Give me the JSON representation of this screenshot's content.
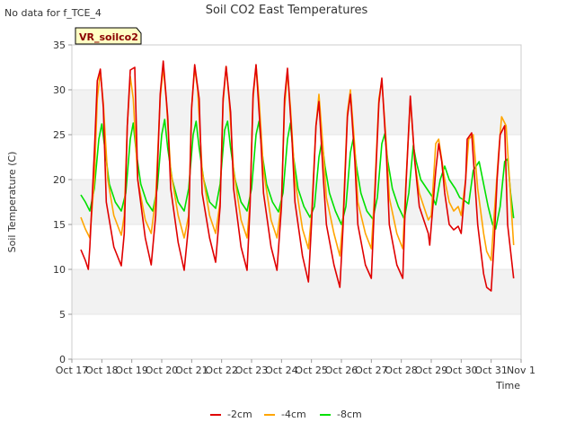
{
  "chart_data": {
    "type": "line",
    "title": "Soil CO2 East Temperatures",
    "no_data_note": "No data for f_TCE_4",
    "site_label": "VR_soilco2",
    "xlabel": "Time",
    "ylabel": "Soil Temperature (C)",
    "ylim": [
      0,
      35
    ],
    "xlim": [
      0,
      15
    ],
    "yticks": [
      0,
      5,
      10,
      15,
      20,
      25,
      30,
      35
    ],
    "xticks": [
      {
        "pos": 0,
        "label": "Oct 17"
      },
      {
        "pos": 1,
        "label": "Oct 18"
      },
      {
        "pos": 2,
        "label": "Oct 19"
      },
      {
        "pos": 3,
        "label": "Oct 20"
      },
      {
        "pos": 4,
        "label": "Oct 21"
      },
      {
        "pos": 5,
        "label": "Oct 22"
      },
      {
        "pos": 6,
        "label": "Oct 23"
      },
      {
        "pos": 7,
        "label": "Oct 24"
      },
      {
        "pos": 8,
        "label": "Oct 25"
      },
      {
        "pos": 9,
        "label": "Oct 26"
      },
      {
        "pos": 10,
        "label": "Oct 27"
      },
      {
        "pos": 11,
        "label": "Oct 28"
      },
      {
        "pos": 12,
        "label": "Oct 29"
      },
      {
        "pos": 13,
        "label": "Oct 30"
      },
      {
        "pos": 14,
        "label": "Oct 31"
      },
      {
        "pos": 15,
        "label": "Nov 1"
      }
    ],
    "grid_bands": true,
    "legend_position": "bottom-center",
    "series": [
      {
        "name": "-2cm",
        "color": "#e00000",
        "x": [
          0.3,
          0.45,
          0.55,
          0.6,
          0.75,
          0.85,
          0.95,
          1.05,
          1.15,
          1.4,
          1.65,
          1.75,
          1.85,
          1.95,
          2.1,
          2.2,
          2.45,
          2.65,
          2.8,
          2.95,
          3.05,
          3.2,
          3.3,
          3.55,
          3.75,
          3.9,
          4.0,
          4.1,
          4.25,
          4.35,
          4.6,
          4.8,
          4.95,
          5.05,
          5.15,
          5.3,
          5.4,
          5.65,
          5.85,
          5.95,
          6.05,
          6.15,
          6.3,
          6.4,
          6.65,
          6.85,
          7.0,
          7.1,
          7.2,
          7.35,
          7.45,
          7.7,
          7.9,
          8.0,
          8.15,
          8.25,
          8.4,
          8.5,
          8.75,
          8.95,
          9.05,
          9.2,
          9.3,
          9.45,
          9.55,
          9.8,
          10.0,
          10.1,
          10.25,
          10.35,
          10.5,
          10.6,
          10.85,
          11.05,
          11.15,
          11.3,
          11.45,
          11.6,
          11.7,
          11.9,
          11.95,
          12.15,
          12.25,
          12.35,
          12.45,
          12.6,
          12.75,
          12.9,
          13.0,
          13.15,
          13.2,
          13.35,
          13.55,
          13.75,
          13.85,
          14.0,
          14.1,
          14.2,
          14.3,
          14.45,
          14.55,
          14.75
        ],
        "values": [
          12.2,
          11.0,
          10.0,
          12.5,
          23.0,
          31.0,
          32.3,
          28.0,
          17.5,
          12.5,
          10.4,
          14.0,
          26.0,
          32.2,
          32.5,
          20.0,
          13.5,
          10.5,
          16.0,
          29.5,
          33.2,
          27.0,
          19.0,
          13.0,
          9.9,
          15.0,
          28.0,
          32.8,
          29.0,
          18.5,
          13.5,
          10.8,
          17.0,
          29.0,
          32.6,
          27.5,
          19.0,
          12.5,
          9.9,
          17.0,
          29.5,
          32.8,
          25.0,
          18.5,
          12.5,
          9.9,
          17.0,
          29.0,
          32.4,
          24.5,
          17.5,
          11.5,
          8.6,
          15.0,
          26.0,
          28.7,
          20.0,
          15.0,
          10.5,
          8.0,
          14.5,
          27.0,
          29.5,
          22.0,
          15.0,
          10.5,
          9.0,
          17.0,
          28.5,
          31.3,
          23.0,
          15.0,
          10.5,
          9.0,
          19.0,
          29.3,
          22.0,
          17.0,
          16.0,
          14.0,
          12.7,
          21.0,
          24.0,
          22.0,
          18.5,
          15.0,
          14.4,
          14.8,
          14.0,
          20.0,
          24.5,
          25.2,
          15.0,
          9.5,
          8.0,
          7.6,
          13.0,
          20.0,
          25.0,
          26.0,
          15.0,
          9.0
        ]
      },
      {
        "name": "-4cm",
        "color": "#ffa500",
        "x": [
          0.3,
          0.45,
          0.6,
          0.75,
          0.85,
          0.95,
          1.05,
          1.2,
          1.4,
          1.65,
          1.75,
          1.85,
          1.95,
          2.05,
          2.2,
          2.45,
          2.65,
          2.8,
          2.95,
          3.05,
          3.15,
          3.3,
          3.55,
          3.75,
          3.9,
          4.0,
          4.1,
          4.2,
          4.35,
          4.6,
          4.8,
          4.95,
          5.05,
          5.15,
          5.25,
          5.4,
          5.65,
          5.85,
          5.95,
          6.05,
          6.15,
          6.25,
          6.4,
          6.65,
          6.85,
          7.0,
          7.1,
          7.2,
          7.3,
          7.45,
          7.7,
          7.9,
          8.0,
          8.15,
          8.25,
          8.4,
          8.5,
          8.75,
          8.95,
          9.05,
          9.2,
          9.3,
          9.45,
          9.55,
          9.8,
          10.0,
          10.1,
          10.25,
          10.35,
          10.5,
          10.6,
          10.85,
          11.05,
          11.15,
          11.3,
          11.45,
          11.6,
          11.75,
          11.9,
          12.0,
          12.15,
          12.25,
          12.45,
          12.6,
          12.75,
          12.9,
          13.0,
          13.15,
          13.25,
          13.4,
          13.55,
          13.75,
          13.85,
          14.0,
          14.1,
          14.25,
          14.35,
          14.5,
          14.75
        ],
        "values": [
          15.8,
          14.5,
          13.5,
          20.0,
          29.0,
          32.0,
          28.5,
          20.0,
          16.0,
          13.8,
          16.0,
          26.0,
          31.5,
          29.0,
          20.0,
          15.5,
          14.0,
          18.0,
          29.0,
          32.5,
          29.0,
          21.0,
          16.0,
          13.5,
          16.0,
          28.0,
          32.5,
          30.0,
          21.0,
          16.0,
          14.0,
          17.5,
          28.5,
          32.6,
          29.0,
          21.0,
          15.5,
          13.5,
          17.5,
          29.0,
          32.7,
          29.0,
          21.0,
          15.5,
          13.5,
          17.5,
          28.0,
          32.0,
          28.0,
          20.0,
          14.5,
          12.3,
          16.0,
          26.0,
          29.5,
          23.0,
          18.0,
          14.0,
          11.5,
          15.5,
          27.5,
          30.0,
          23.5,
          17.5,
          14.0,
          12.3,
          18.0,
          29.0,
          31.0,
          24.0,
          18.0,
          14.0,
          12.3,
          19.5,
          29.0,
          22.0,
          18.5,
          17.0,
          15.5,
          16.0,
          24.0,
          24.5,
          20.0,
          17.5,
          16.5,
          17.0,
          16.0,
          20.0,
          24.5,
          25.0,
          19.0,
          14.0,
          12.0,
          11.0,
          16.0,
          23.0,
          27.0,
          26.0,
          12.7
        ]
      },
      {
        "name": "-8cm",
        "color": "#00e000",
        "x": [
          0.3,
          0.45,
          0.6,
          0.75,
          0.9,
          1.0,
          1.1,
          1.25,
          1.45,
          1.65,
          1.8,
          1.95,
          2.05,
          2.15,
          2.3,
          2.5,
          2.7,
          2.85,
          3.0,
          3.1,
          3.2,
          3.35,
          3.55,
          3.75,
          3.9,
          4.05,
          4.15,
          4.25,
          4.4,
          4.6,
          4.8,
          4.95,
          5.1,
          5.2,
          5.3,
          5.45,
          5.65,
          5.85,
          6.0,
          6.15,
          6.25,
          6.35,
          6.5,
          6.7,
          6.9,
          7.05,
          7.2,
          7.3,
          7.4,
          7.55,
          7.75,
          7.95,
          8.1,
          8.25,
          8.35,
          8.45,
          8.6,
          8.8,
          9.0,
          9.15,
          9.3,
          9.4,
          9.5,
          9.65,
          9.85,
          10.05,
          10.2,
          10.35,
          10.45,
          10.55,
          10.7,
          10.9,
          11.1,
          11.25,
          11.4,
          11.5,
          11.65,
          11.85,
          12.05,
          12.15,
          12.3,
          12.45,
          12.6,
          12.8,
          12.95,
          13.05,
          13.25,
          13.4,
          13.6,
          13.75,
          13.9,
          14.05,
          14.15,
          14.3,
          14.45,
          14.55,
          14.65,
          14.75
        ],
        "values": [
          18.3,
          17.5,
          16.5,
          19.0,
          24.5,
          26.2,
          23.5,
          19.5,
          17.5,
          16.5,
          18.5,
          24.5,
          26.3,
          23.0,
          19.5,
          17.5,
          16.5,
          19.0,
          25.0,
          26.7,
          23.5,
          20.0,
          17.5,
          16.5,
          19.0,
          25.0,
          26.5,
          23.5,
          20.0,
          17.5,
          16.8,
          19.5,
          25.5,
          26.5,
          23.5,
          20.0,
          17.5,
          16.5,
          19.0,
          25.0,
          26.5,
          23.0,
          19.5,
          17.5,
          16.4,
          18.5,
          24.5,
          26.3,
          22.5,
          19.0,
          17.0,
          15.8,
          17.0,
          22.5,
          24.3,
          21.5,
          18.5,
          16.5,
          15.0,
          17.0,
          23.0,
          24.6,
          21.5,
          18.5,
          16.5,
          15.6,
          18.0,
          24.0,
          25.1,
          22.0,
          19.0,
          17.0,
          15.6,
          18.5,
          23.8,
          22.0,
          20.0,
          19.0,
          18.0,
          17.2,
          20.0,
          21.5,
          20.0,
          19.0,
          18.0,
          17.8,
          17.3,
          21.0,
          22.0,
          19.5,
          17.0,
          15.0,
          14.5,
          17.0,
          22.0,
          22.3,
          18.5,
          15.7
        ]
      }
    ]
  }
}
